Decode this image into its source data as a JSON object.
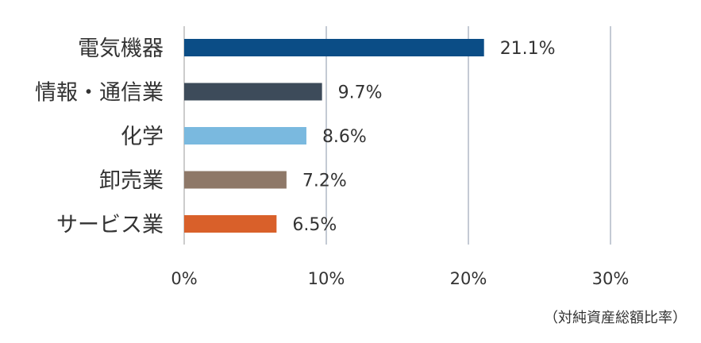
{
  "chart_data": {
    "type": "bar",
    "orientation": "horizontal",
    "categories": [
      "電気機器",
      "情報・通信業",
      "化学",
      "卸売業",
      "サービス業"
    ],
    "values": [
      21.1,
      9.7,
      8.6,
      7.2,
      6.5
    ],
    "value_labels": [
      "21.1%",
      "9.7%",
      "8.6%",
      "7.2%",
      "6.5%"
    ],
    "colors": [
      "#0b4d86",
      "#3d4b5a",
      "#7ab9df",
      "#8e7868",
      "#d9602a"
    ],
    "xlim": [
      0,
      30
    ],
    "x_ticks": [
      0,
      10,
      20,
      30
    ],
    "x_tick_labels": [
      "0%",
      "10%",
      "20%",
      "30%"
    ],
    "grid": true,
    "legend": "none"
  },
  "note": "（対純資産総額比率）"
}
